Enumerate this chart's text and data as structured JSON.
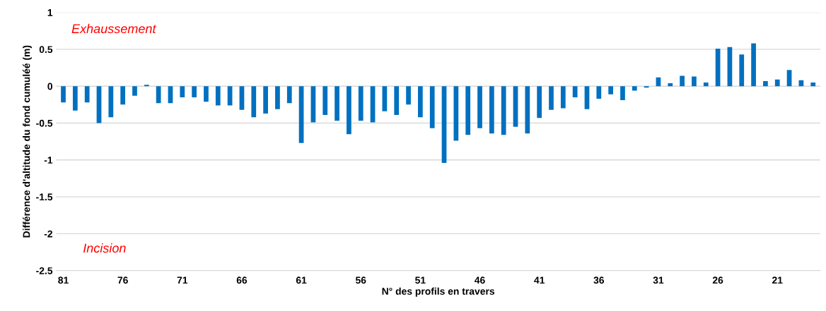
{
  "chart_data": {
    "type": "bar",
    "xlabel": "N° des profils en travers",
    "ylabel": "Différence d'altitude du fond cumuléé (m)",
    "annotations": [
      "Exhaussement",
      "Incision"
    ],
    "categories": [
      "81",
      null,
      null,
      null,
      null,
      "76",
      null,
      null,
      null,
      null,
      "71",
      null,
      null,
      null,
      null,
      "66",
      null,
      null,
      null,
      null,
      "61",
      null,
      null,
      null,
      null,
      "56",
      null,
      null,
      null,
      null,
      "51",
      null,
      null,
      null,
      null,
      "46",
      null,
      null,
      null,
      null,
      "41",
      null,
      null,
      null,
      null,
      "36",
      null,
      null,
      null,
      null,
      "31",
      null,
      null,
      null,
      null,
      "26",
      null,
      null,
      null,
      null,
      "21",
      null,
      null,
      null
    ],
    "values": [
      -0.22,
      -0.33,
      -0.22,
      -0.5,
      -0.42,
      -0.25,
      -0.13,
      0.02,
      -0.23,
      -0.23,
      -0.15,
      -0.15,
      -0.21,
      -0.26,
      -0.26,
      -0.32,
      -0.42,
      -0.37,
      -0.31,
      -0.23,
      -0.77,
      -0.49,
      -0.39,
      -0.47,
      -0.65,
      -0.47,
      -0.49,
      -0.34,
      -0.39,
      -0.25,
      -0.42,
      -0.57,
      -1.04,
      -0.74,
      -0.66,
      -0.57,
      -0.64,
      -0.66,
      -0.55,
      -0.64,
      -0.43,
      -0.32,
      -0.3,
      -0.15,
      -0.31,
      -0.17,
      -0.11,
      -0.19,
      -0.06,
      -0.02,
      0.12,
      0.04,
      0.14,
      0.13,
      0.05,
      0.51,
      0.53,
      0.43,
      0.58,
      0.07,
      0.09,
      0.22,
      0.08,
      0.05
    ],
    "color": "#0070c0",
    "ylim": [
      -2.5,
      1
    ],
    "yticks": [
      -2.5,
      -2,
      -1.5,
      -1,
      -0.5,
      0,
      0.5,
      1
    ],
    "grid": "y"
  }
}
